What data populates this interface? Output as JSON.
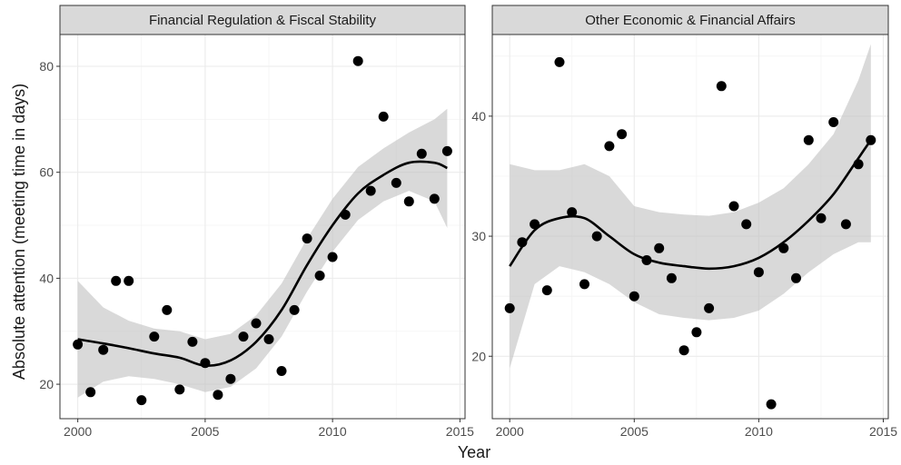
{
  "chart_data": {
    "type": "scatter",
    "xlabel": "Year",
    "ylabel": "Absolute attention (meeting time in days)",
    "grid": true,
    "smoother": "loess with confidence band",
    "panels": [
      {
        "title": "Financial Regulation & Fiscal Stability",
        "xlim": [
          1999.3,
          2015.2
        ],
        "ylim": [
          13.5,
          86
        ],
        "x_ticks": [
          2000,
          2005,
          2010,
          2015
        ],
        "y_ticks": [
          20,
          40,
          60,
          80
        ],
        "points": [
          {
            "x": 2000.0,
            "y": 27.5
          },
          {
            "x": 2000.5,
            "y": 18.5
          },
          {
            "x": 2001.0,
            "y": 26.5
          },
          {
            "x": 2001.5,
            "y": 39.5
          },
          {
            "x": 2002.0,
            "y": 39.5
          },
          {
            "x": 2002.5,
            "y": 17.0
          },
          {
            "x": 2003.0,
            "y": 29.0
          },
          {
            "x": 2003.5,
            "y": 34.0
          },
          {
            "x": 2004.0,
            "y": 19.0
          },
          {
            "x": 2004.5,
            "y": 28.0
          },
          {
            "x": 2005.0,
            "y": 24.0
          },
          {
            "x": 2005.5,
            "y": 18.0
          },
          {
            "x": 2006.0,
            "y": 21.0
          },
          {
            "x": 2006.5,
            "y": 29.0
          },
          {
            "x": 2007.0,
            "y": 31.5
          },
          {
            "x": 2007.5,
            "y": 28.5
          },
          {
            "x": 2008.0,
            "y": 22.5
          },
          {
            "x": 2008.5,
            "y": 34.0
          },
          {
            "x": 2009.0,
            "y": 47.5
          },
          {
            "x": 2009.5,
            "y": 40.5
          },
          {
            "x": 2010.0,
            "y": 44.0
          },
          {
            "x": 2010.5,
            "y": 52.0
          },
          {
            "x": 2011.0,
            "y": 81.0
          },
          {
            "x": 2011.5,
            "y": 56.5
          },
          {
            "x": 2012.0,
            "y": 70.5
          },
          {
            "x": 2012.5,
            "y": 58.0
          },
          {
            "x": 2013.0,
            "y": 54.5
          },
          {
            "x": 2013.5,
            "y": 63.5
          },
          {
            "x": 2014.0,
            "y": 55.0
          },
          {
            "x": 2014.5,
            "y": 64.0
          }
        ],
        "smooth": {
          "x": [
            2000,
            2001,
            2002,
            2003,
            2004,
            2005,
            2006,
            2007,
            2008,
            2009,
            2010,
            2011,
            2012,
            2013,
            2014,
            2014.5
          ],
          "y": [
            28.5,
            27.7,
            26.8,
            25.8,
            25.0,
            23.5,
            24.5,
            28.0,
            34.0,
            42.5,
            50.0,
            56.0,
            59.5,
            61.8,
            61.8,
            60.8
          ],
          "lower": [
            17.5,
            20.5,
            21.5,
            21.0,
            20.0,
            18.5,
            19.5,
            23.0,
            29.0,
            37.5,
            45.0,
            51.0,
            54.5,
            56.5,
            54.5,
            49.5
          ],
          "upper": [
            39.5,
            34.5,
            32.0,
            30.5,
            30.0,
            28.5,
            29.5,
            33.0,
            39.0,
            47.5,
            55.0,
            61.0,
            64.5,
            67.5,
            70.0,
            72.0
          ]
        }
      },
      {
        "title": "Other Economic & Financial Affairs",
        "xlim": [
          1999.3,
          2015.2
        ],
        "ylim": [
          14.8,
          46.8
        ],
        "x_ticks": [
          2000,
          2005,
          2010,
          2015
        ],
        "y_ticks": [
          20,
          30,
          40
        ],
        "points": [
          {
            "x": 2000.0,
            "y": 24.0
          },
          {
            "x": 2000.5,
            "y": 29.5
          },
          {
            "x": 2001.0,
            "y": 31.0
          },
          {
            "x": 2001.5,
            "y": 25.5
          },
          {
            "x": 2002.0,
            "y": 44.5
          },
          {
            "x": 2002.5,
            "y": 32.0
          },
          {
            "x": 2003.0,
            "y": 26.0
          },
          {
            "x": 2003.5,
            "y": 30.0
          },
          {
            "x": 2004.0,
            "y": 37.5
          },
          {
            "x": 2004.5,
            "y": 38.5
          },
          {
            "x": 2005.0,
            "y": 25.0
          },
          {
            "x": 2005.5,
            "y": 28.0
          },
          {
            "x": 2006.0,
            "y": 29.0
          },
          {
            "x": 2006.5,
            "y": 26.5
          },
          {
            "x": 2007.0,
            "y": 20.5
          },
          {
            "x": 2007.5,
            "y": 22.0
          },
          {
            "x": 2008.0,
            "y": 24.0
          },
          {
            "x": 2008.5,
            "y": 42.5
          },
          {
            "x": 2009.0,
            "y": 32.5
          },
          {
            "x": 2009.5,
            "y": 31.0
          },
          {
            "x": 2010.0,
            "y": 27.0
          },
          {
            "x": 2010.5,
            "y": 16.0
          },
          {
            "x": 2011.0,
            "y": 29.0
          },
          {
            "x": 2011.5,
            "y": 26.5
          },
          {
            "x": 2012.0,
            "y": 38.0
          },
          {
            "x": 2012.5,
            "y": 31.5
          },
          {
            "x": 2013.0,
            "y": 39.5
          },
          {
            "x": 2013.5,
            "y": 31.0
          },
          {
            "x": 2014.0,
            "y": 36.0
          },
          {
            "x": 2014.5,
            "y": 38.0
          }
        ],
        "smooth": {
          "x": [
            2000,
            2001,
            2002,
            2003,
            2004,
            2005,
            2006,
            2007,
            2008,
            2009,
            2010,
            2011,
            2012,
            2013,
            2014,
            2014.5
          ],
          "y": [
            27.5,
            30.5,
            31.5,
            31.5,
            30.0,
            28.5,
            27.8,
            27.5,
            27.3,
            27.5,
            28.2,
            29.5,
            31.3,
            33.5,
            36.5,
            38.0
          ],
          "lower": [
            19.0,
            26.0,
            27.5,
            27.0,
            26.0,
            24.5,
            23.5,
            23.2,
            23.0,
            23.2,
            23.8,
            25.2,
            27.0,
            28.5,
            29.5,
            29.5
          ],
          "upper": [
            36.0,
            35.5,
            35.5,
            36.0,
            35.0,
            32.5,
            32.0,
            31.8,
            31.7,
            32.0,
            32.8,
            34.0,
            36.0,
            38.5,
            43.0,
            46.0
          ]
        }
      }
    ]
  },
  "colors": {
    "strip_fill": "#d9d9d9",
    "points": "#000000",
    "line": "#000000",
    "ribbon": "#bfbfbf",
    "grid": "#ebebeb"
  }
}
